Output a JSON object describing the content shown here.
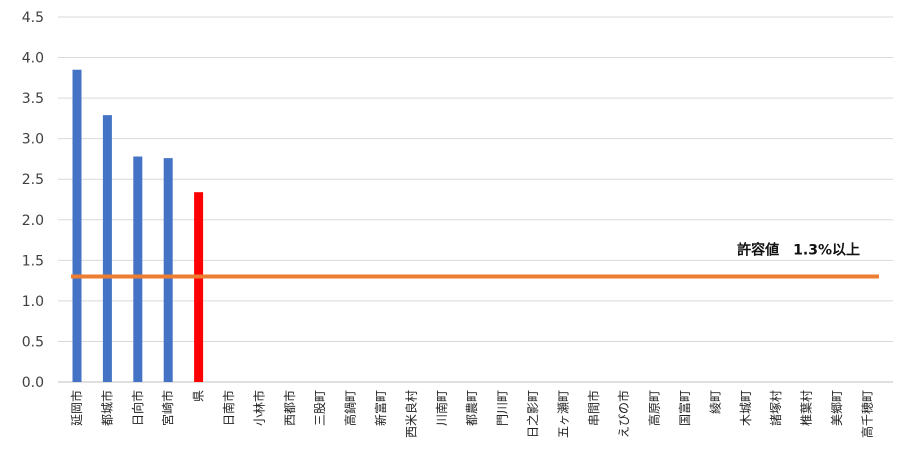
{
  "chart_data": {
    "type": "bar",
    "categories": [
      "延岡市",
      "都城市",
      "日向市",
      "宮崎市",
      "県",
      "日南市",
      "小林市",
      "西都市",
      "三股町",
      "高鍋町",
      "新富町",
      "西米良村",
      "川南町",
      "都農町",
      "門川町",
      "日之影町",
      "五ヶ瀬町",
      "串間市",
      "えびの市",
      "高原町",
      "国富町",
      "綾町",
      "木城町",
      "諸塚村",
      "椎葉村",
      "美郷町",
      "高千穂町"
    ],
    "values": [
      3.85,
      3.29,
      2.78,
      2.76,
      2.34,
      0,
      0,
      0,
      0,
      0,
      0,
      0,
      0,
      0,
      0,
      0,
      0,
      0,
      0,
      0,
      0,
      0,
      0,
      0,
      0,
      0,
      0
    ],
    "ylim": [
      0,
      4.5
    ],
    "yticks": [
      "0.0",
      "0.5",
      "1.0",
      "1.5",
      "2.0",
      "2.5",
      "3.0",
      "3.5",
      "4.0",
      "4.5"
    ],
    "grid": true,
    "bar_color": "#4472C4",
    "highlight_category": "県",
    "highlight_color": "#FF0000",
    "reference_line": {
      "value": 1.3,
      "color": "#ED7D31",
      "label": "許容値　1.3%以上"
    }
  }
}
